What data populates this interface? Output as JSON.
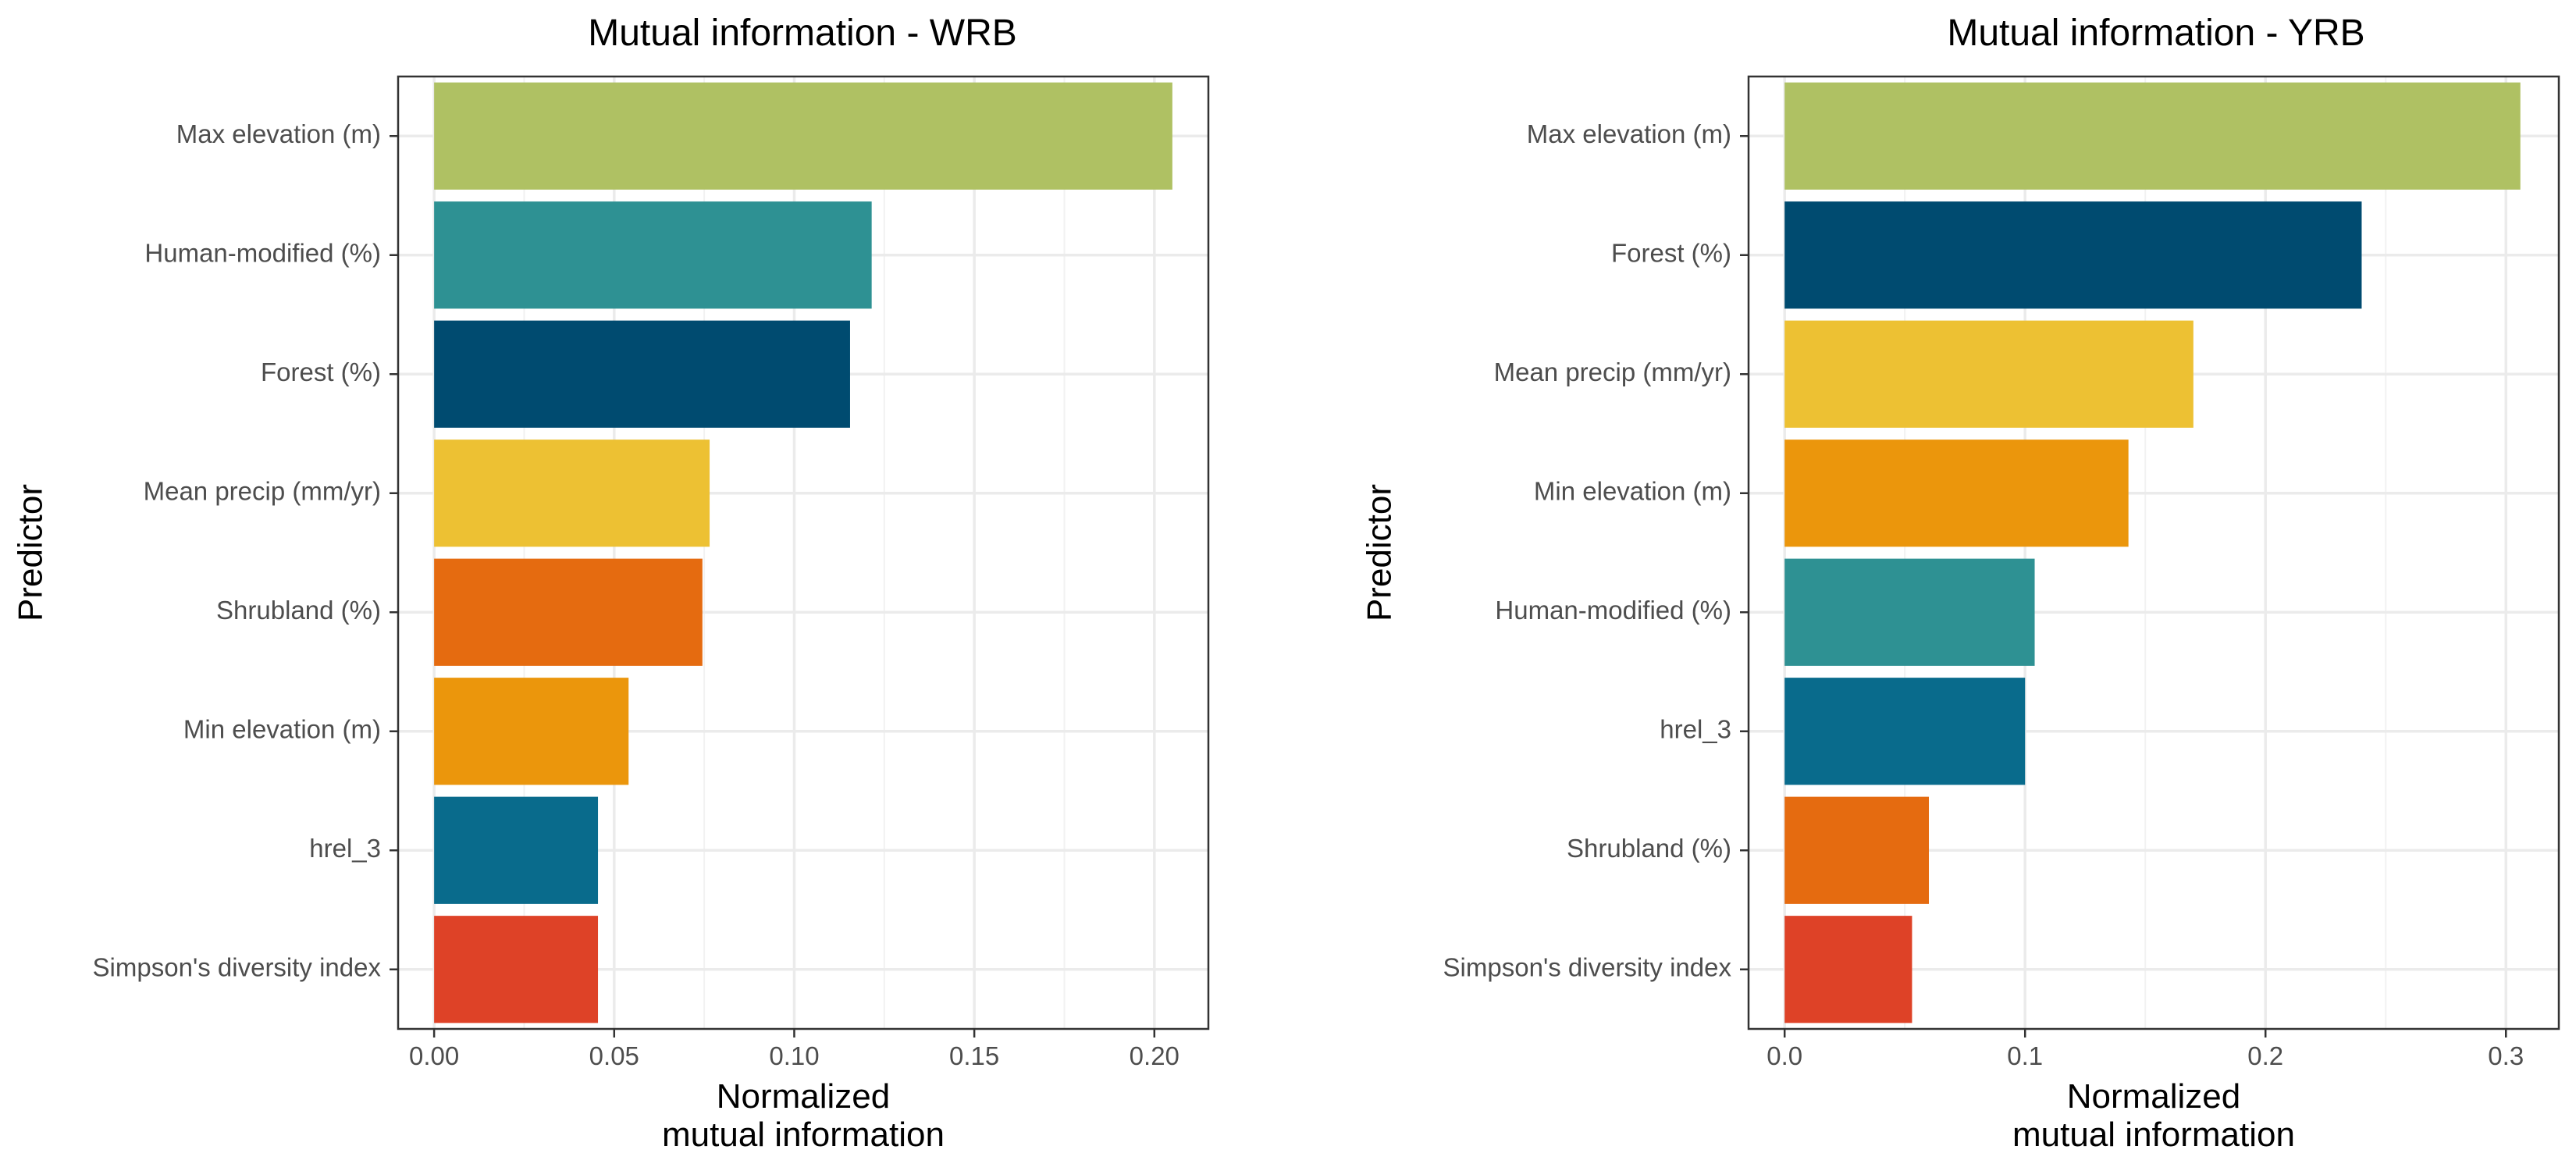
{
  "chart_data": [
    {
      "type": "bar",
      "orientation": "horizontal",
      "title": "Mutual information - WRB",
      "xlabel": [
        "Normalized",
        "mutual information"
      ],
      "ylabel": "Predictor",
      "xlim": [
        -0.01,
        0.215
      ],
      "xticks": [
        0,
        0.05,
        0.1,
        0.15,
        0.2
      ],
      "xtick_labels": [
        "0.00",
        "0.05",
        "0.10",
        "0.15",
        "0.20"
      ],
      "grid": true,
      "categories": [
        "Max elevation (m)",
        "Human-modified (%)",
        "Forest (%)",
        "Mean precip (mm/yr)",
        "Shrubland (%)",
        "Min elevation (m)",
        "hrel_3",
        "Simpson's diversity index"
      ],
      "values": [
        0.205,
        0.1215,
        0.1155,
        0.0765,
        0.0745,
        0.054,
        0.0455,
        0.0455
      ],
      "colors": [
        "#AFC163",
        "#2E9193",
        "#004B70",
        "#EDC133",
        "#E56B10",
        "#EB960C",
        "#096B8C",
        "#DE4227"
      ]
    },
    {
      "type": "bar",
      "orientation": "horizontal",
      "title": "Mutual information - YRB",
      "xlabel": [
        "Normalized",
        "mutual information"
      ],
      "ylabel": "Predictor",
      "xlim": [
        -0.015,
        0.322
      ],
      "xticks": [
        0,
        0.1,
        0.2,
        0.3
      ],
      "xtick_labels": [
        "0.0",
        "0.1",
        "0.2",
        "0.3"
      ],
      "grid": true,
      "categories": [
        "Max elevation (m)",
        "Forest (%)",
        "Mean precip (mm/yr)",
        "Min elevation (m)",
        "Human-modified (%)",
        "hrel_3",
        "Shrubland (%)",
        "Simpson's diversity index"
      ],
      "values": [
        0.306,
        0.24,
        0.17,
        0.143,
        0.104,
        0.1,
        0.06,
        0.053
      ],
      "colors": [
        "#AFC163",
        "#004B70",
        "#EDC133",
        "#EB960C",
        "#2E9193",
        "#096B8C",
        "#E56B10",
        "#DE4227"
      ]
    }
  ]
}
